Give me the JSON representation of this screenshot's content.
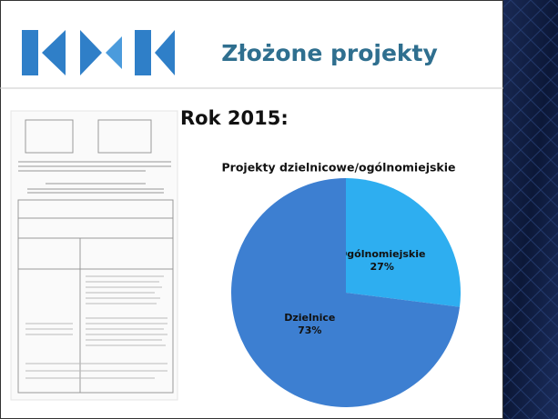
{
  "slide": {
    "title": "Złożone projekty",
    "subtitle": "Rok 2015:"
  },
  "chart_data": {
    "type": "pie",
    "title": "Projekty dzielnicowe/ogólnomiejskie",
    "categories": [
      "Ogólnomiejskie",
      "Dzielnice"
    ],
    "values": [
      27,
      73
    ],
    "value_labels": [
      "27%",
      "73%"
    ],
    "colors": [
      "#2eaef0",
      "#3d7fd1"
    ]
  }
}
